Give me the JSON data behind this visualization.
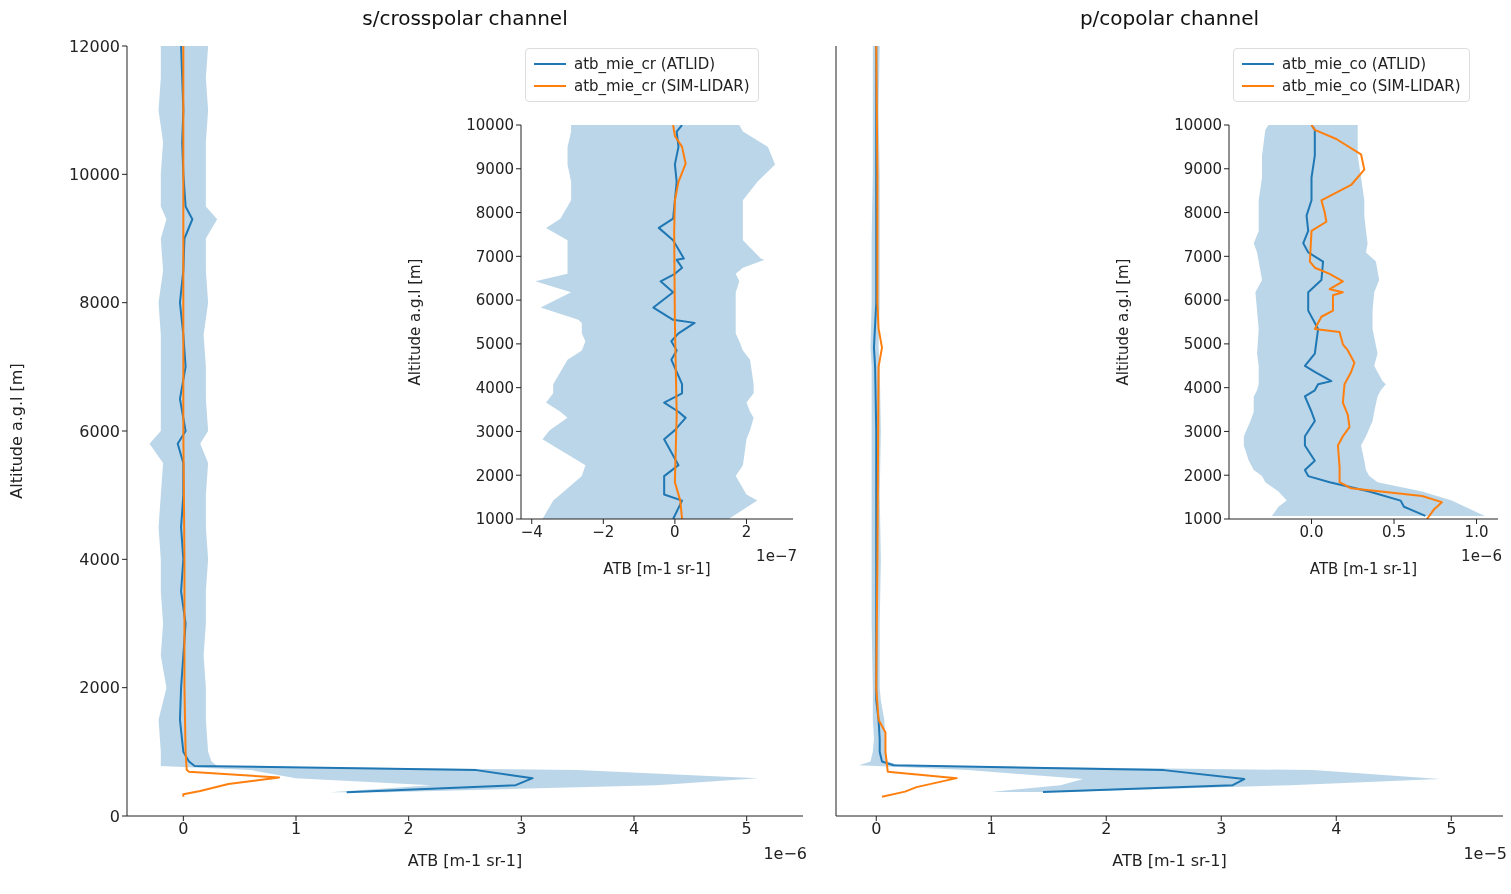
{
  "chart_data": [
    {
      "type": "line",
      "orientation": "horizontal",
      "title": "s/crosspolar channel",
      "xlabel": "ATB [m-1 sr-1]",
      "ylabel": "Altitude a.g.l [m]",
      "annotations": [
        "1e−6"
      ],
      "xlim": [
        -0.5,
        5.5
      ],
      "xticks": [
        0,
        1,
        2,
        3,
        4,
        5
      ],
      "ylim": [
        0,
        12000
      ],
      "yticks": [
        0,
        2000,
        4000,
        6000,
        8000,
        10000,
        12000
      ],
      "series": [
        {
          "color": "#1f77b4",
          "x": [
            370,
            480,
            590,
            715,
            780,
            850,
            1000,
            1500,
            2000,
            2500,
            3000,
            3500,
            4000,
            4500,
            5000,
            5500,
            5800,
            6000,
            6500,
            7000,
            7500,
            8000,
            8500,
            9000,
            9300,
            9500,
            10000,
            10500,
            11000,
            11500,
            12000
          ],
          "values": [
            1.45,
            2.95,
            3.1,
            2.6,
            0.1,
            0.05,
            0.0,
            -0.03,
            -0.02,
            0.0,
            0.02,
            -0.02,
            0.0,
            -0.02,
            0.0,
            0.0,
            -0.05,
            0.02,
            -0.03,
            0.02,
            0.0,
            -0.03,
            0.0,
            0.01,
            0.08,
            0.02,
            0.0,
            -0.01,
            0.0,
            -0.01,
            -0.02
          ],
          "lower": [
            1.3,
            2.2,
            1.0,
            0.6,
            -0.2,
            -0.2,
            -0.2,
            -0.22,
            -0.15,
            -0.2,
            -0.18,
            -0.2,
            -0.2,
            -0.22,
            -0.2,
            -0.18,
            -0.3,
            -0.2,
            -0.2,
            -0.2,
            -0.2,
            -0.22,
            -0.18,
            -0.2,
            -0.15,
            -0.2,
            -0.2,
            -0.18,
            -0.22,
            -0.2,
            -0.2
          ],
          "upper": [
            1.8,
            4.2,
            5.1,
            3.5,
            0.3,
            0.25,
            0.22,
            0.2,
            0.2,
            0.18,
            0.2,
            0.2,
            0.22,
            0.2,
            0.2,
            0.22,
            0.15,
            0.22,
            0.2,
            0.2,
            0.18,
            0.22,
            0.2,
            0.2,
            0.3,
            0.2,
            0.2,
            0.2,
            0.22,
            0.2,
            0.22
          ]
        },
        {
          "color": "#ff7f0e",
          "x": [
            300,
            340,
            390,
            500,
            600,
            690,
            720,
            1000,
            2000,
            4000,
            6000,
            8000,
            10000,
            12000
          ],
          "values": [
            0.0,
            0.0,
            0.15,
            0.4,
            0.85,
            0.05,
            0.03,
            0.02,
            0.01,
            0.01,
            0.0,
            0.0,
            0.0,
            0.0
          ]
        }
      ]
    },
    {
      "type": "line",
      "orientation": "horizontal",
      "legend": "top",
      "xlabel": "ATB [m-1 sr-1]",
      "ylabel": "Altitude a.g.l [m]",
      "annotations": [
        "1e−7"
      ],
      "xlim": [
        -4.3,
        3.3
      ],
      "xticks": [
        {
          "value": -4,
          "label": "−4"
        },
        {
          "value": -2,
          "label": "−2"
        },
        0,
        2
      ],
      "ylim": [
        1000,
        10000
      ],
      "yticks": [
        1000,
        2000,
        3000,
        4000,
        5000,
        6000,
        7000,
        8000,
        9000,
        10000
      ],
      "series": [
        {
          "name": "atb_mie_cr (ATLID)",
          "color": "#1f77b4",
          "x": [
            1000,
            1420,
            1560,
            1980,
            2230,
            2820,
            3030,
            3310,
            3450,
            3660,
            3870,
            4080,
            4640,
            4850,
            5060,
            5240,
            5480,
            5550,
            5830,
            6180,
            6430,
            6600,
            6740,
            6920,
            6950,
            7370,
            7650,
            7860,
            8280,
            8700,
            9100,
            9500,
            9850,
            10000
          ],
          "values": [
            -0.05,
            0.2,
            -0.3,
            -0.3,
            0.1,
            -0.3,
            0.0,
            0.3,
            0.1,
            -0.3,
            0.2,
            0.2,
            -0.1,
            0.05,
            -0.1,
            0.1,
            0.55,
            -0.05,
            -0.6,
            -0.05,
            -0.4,
            0.0,
            0.2,
            0.05,
            0.25,
            -0.05,
            -0.45,
            -0.05,
            0.0,
            0.05,
            0.0,
            0.1,
            0.05,
            0.2
          ],
          "lower": [
            -3.7,
            -3.4,
            -3.2,
            -2.6,
            -2.5,
            -3.7,
            -3.5,
            -3.0,
            -3.2,
            -3.6,
            -3.4,
            -3.4,
            -3.0,
            -2.6,
            -2.5,
            -2.6,
            -2.6,
            -2.7,
            -3.75,
            -2.9,
            -3.9,
            -3.0,
            -3.0,
            -3.0,
            -3.0,
            -3.0,
            -3.6,
            -3.2,
            -2.9,
            -2.9,
            -3.0,
            -3.0,
            -2.9,
            -2.9
          ],
          "upper": [
            1.5,
            2.3,
            2.0,
            1.7,
            1.9,
            2.0,
            2.1,
            2.2,
            2.1,
            2.0,
            2.2,
            2.2,
            2.1,
            1.9,
            1.8,
            1.7,
            1.7,
            1.7,
            1.7,
            1.7,
            1.8,
            1.7,
            1.9,
            2.5,
            2.4,
            1.9,
            1.9,
            1.9,
            1.9,
            2.3,
            2.8,
            2.6,
            1.9,
            1.8
          ]
        },
        {
          "name": "atb_mie_cr (SIM-LIDAR)",
          "color": "#ff7f0e",
          "x": [
            1000,
            1420,
            1840,
            3380,
            5480,
            7580,
            8280,
            8700,
            9120,
            9500,
            9750,
            10000
          ],
          "values": [
            0.2,
            0.15,
            0.0,
            0.05,
            0.0,
            -0.02,
            0.0,
            0.1,
            0.3,
            0.2,
            0.0,
            -0.05
          ]
        }
      ]
    },
    {
      "type": "line",
      "orientation": "horizontal",
      "title": "p/copolar channel",
      "xlabel": "ATB [m-1 sr-1]",
      "annotations": [
        "1e−5"
      ],
      "tick_labels": "x",
      "xlim": [
        -0.35,
        5.45
      ],
      "xticks": [
        0,
        1,
        2,
        3,
        4,
        5
      ],
      "ylim": [
        0,
        12000
      ],
      "yticks": [
        0,
        2000,
        4000,
        6000,
        8000,
        10000,
        12000
      ],
      "series": [
        {
          "color": "#1f77b4",
          "x": [
            374,
            480,
            575,
            715,
            790,
            850,
            1000,
            1200,
            1500,
            1800,
            2000,
            3000,
            4000,
            5000,
            6000,
            7000,
            7300,
            8000,
            9000,
            10000,
            11000,
            12000
          ],
          "values": [
            1.45,
            3.1,
            3.2,
            2.5,
            0.15,
            0.05,
            0.03,
            0.03,
            0.02,
            0.0,
            0.0,
            0.0,
            0.0,
            0.0,
            0.0,
            -0.01,
            -0.02,
            0.0,
            0.0,
            0.0,
            0.0,
            0.0
          ],
          "lower": [
            1.0,
            1.6,
            1.8,
            0.8,
            -0.15,
            -0.05,
            -0.03,
            -0.02,
            -0.03,
            -0.03,
            -0.03,
            -0.04,
            -0.04,
            -0.04,
            -0.04,
            -0.04,
            -0.05,
            -0.04,
            -0.04,
            -0.03,
            -0.03,
            -0.03
          ],
          "upper": [
            1.6,
            3.6,
            4.9,
            3.8,
            0.2,
            0.1,
            0.08,
            0.08,
            0.07,
            0.04,
            0.03,
            0.03,
            0.04,
            0.03,
            0.04,
            0.03,
            0.02,
            0.03,
            0.03,
            0.03,
            0.02,
            0.03
          ]
        },
        {
          "color": "#ff7f0e",
          "x": [
            300,
            380,
            450,
            590,
            690,
            1000,
            1300,
            1500,
            2000,
            4000,
            7000,
            7300,
            7600,
            8000,
            10000,
            12000
          ],
          "values": [
            0.05,
            0.25,
            0.35,
            0.7,
            0.1,
            0.08,
            0.08,
            0.02,
            0.0,
            0.01,
            0.02,
            0.05,
            0.02,
            0.01,
            0.01,
            0.0
          ]
        }
      ]
    },
    {
      "type": "line",
      "orientation": "horizontal",
      "legend": "top",
      "xlabel": "ATB [m-1 sr-1]",
      "ylabel": "Altitude a.g.l [m]",
      "annotations": [
        "1e−6"
      ],
      "xlim": [
        -0.5,
        1.13
      ],
      "xticks": [
        {
          "value": 0,
          "label": "0.0"
        },
        {
          "value": 0.5,
          "label": "0.5"
        },
        {
          "value": 1,
          "label": "1.0"
        }
      ],
      "ylim": [
        1000,
        10000
      ],
      "yticks": [
        1000,
        2000,
        3000,
        4000,
        5000,
        6000,
        7000,
        8000,
        9000,
        10000
      ],
      "series": [
        {
          "name": "atb_mie_co (ATLID)",
          "color": "#1f77b4",
          "x": [
            1070,
            1280,
            1420,
            1630,
            1840,
            1980,
            2120,
            2330,
            2680,
            2890,
            3240,
            3450,
            3800,
            3940,
            4080,
            4150,
            4360,
            4500,
            4780,
            5340,
            5760,
            6180,
            6460,
            6880,
            7090,
            7300,
            7580,
            7930,
            8280,
            8800,
            9300,
            9890,
            10000
          ],
          "values": [
            0.69,
            0.56,
            0.54,
            0.35,
            0.11,
            -0.02,
            -0.04,
            0.02,
            -0.04,
            -0.04,
            0.02,
            0.0,
            -0.04,
            0.02,
            0.04,
            0.12,
            0.02,
            -0.04,
            0.02,
            0.04,
            -0.02,
            -0.02,
            0.06,
            0.07,
            -0.02,
            -0.05,
            -0.02,
            -0.03,
            0.0,
            0.0,
            0.02,
            0.02,
            0.0
          ],
          "lower": [
            -0.24,
            -0.2,
            -0.15,
            -0.2,
            -0.28,
            -0.3,
            -0.35,
            -0.38,
            -0.41,
            -0.41,
            -0.37,
            -0.35,
            -0.35,
            -0.33,
            -0.32,
            -0.32,
            -0.32,
            -0.32,
            -0.33,
            -0.32,
            -0.33,
            -0.34,
            -0.3,
            -0.32,
            -0.33,
            -0.35,
            -0.32,
            -0.32,
            -0.32,
            -0.3,
            -0.3,
            -0.28,
            -0.26
          ],
          "upper": [
            1.05,
            0.93,
            0.85,
            0.67,
            0.4,
            0.35,
            0.33,
            0.32,
            0.3,
            0.33,
            0.37,
            0.38,
            0.4,
            0.42,
            0.45,
            0.43,
            0.4,
            0.38,
            0.4,
            0.37,
            0.37,
            0.38,
            0.41,
            0.39,
            0.33,
            0.34,
            0.33,
            0.32,
            0.32,
            0.3,
            0.28,
            0.28,
            0.28
          ]
        },
        {
          "name": "atb_mie_co (SIM-LIDAR)",
          "color": "#ff7f0e",
          "x": [
            1000,
            1210,
            1385,
            1525,
            1700,
            1840,
            2190,
            2680,
            2890,
            3100,
            3380,
            3660,
            4080,
            4360,
            4570,
            4850,
            4990,
            5270,
            5340,
            5620,
            5760,
            6110,
            6180,
            6250,
            6430,
            6600,
            6740,
            6880,
            7580,
            7790,
            8000,
            8280,
            8630,
            8980,
            9330,
            9680,
            9890,
            10000
          ],
          "values": [
            0.7,
            0.74,
            0.79,
            0.67,
            0.24,
            0.17,
            0.17,
            0.16,
            0.19,
            0.23,
            0.22,
            0.19,
            0.2,
            0.24,
            0.26,
            0.22,
            0.19,
            0.17,
            0.02,
            0.06,
            0.13,
            0.13,
            0.19,
            0.11,
            0.19,
            0.11,
            0.02,
            -0.01,
            0.0,
            0.09,
            0.08,
            0.06,
            0.24,
            0.32,
            0.3,
            0.15,
            0.02,
            0.0
          ]
        }
      ]
    }
  ]
}
